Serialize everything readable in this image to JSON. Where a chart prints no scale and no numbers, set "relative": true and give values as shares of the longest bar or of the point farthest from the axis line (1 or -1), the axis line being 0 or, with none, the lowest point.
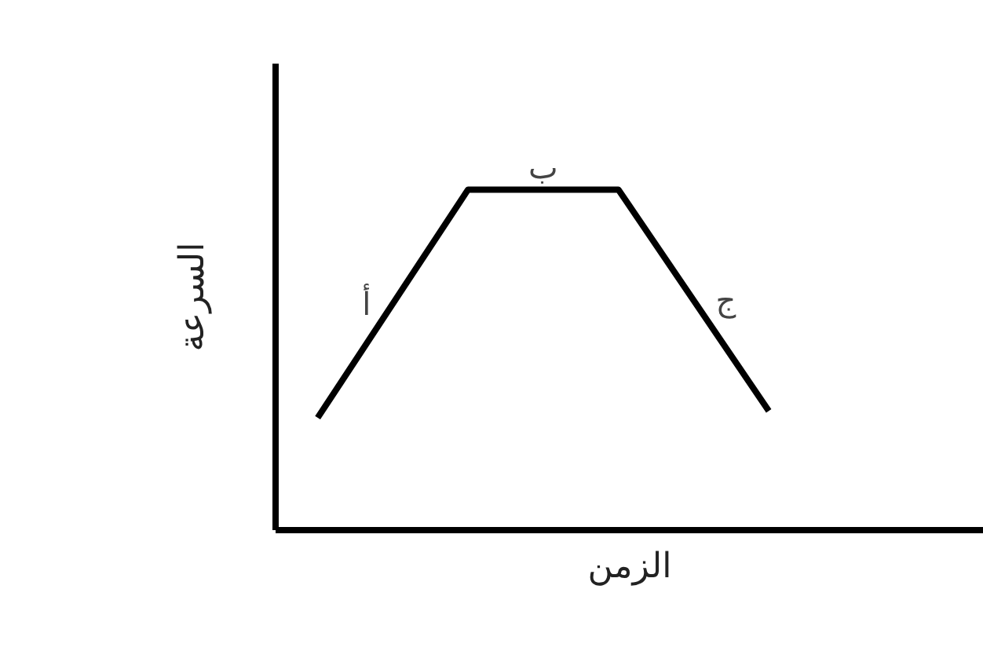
{
  "chart_data": {
    "type": "line",
    "relative": true,
    "xlabel": "الزمن",
    "ylabel": "السرعة",
    "categories": [
      null,
      null,
      null,
      null
    ],
    "series": [
      {
        "color": "#000000",
        "values": [
          0.33,
          1,
          1,
          0.35
        ]
      }
    ],
    "annotations": [
      "أ",
      "ب",
      "ج"
    ],
    "grid": false
  }
}
